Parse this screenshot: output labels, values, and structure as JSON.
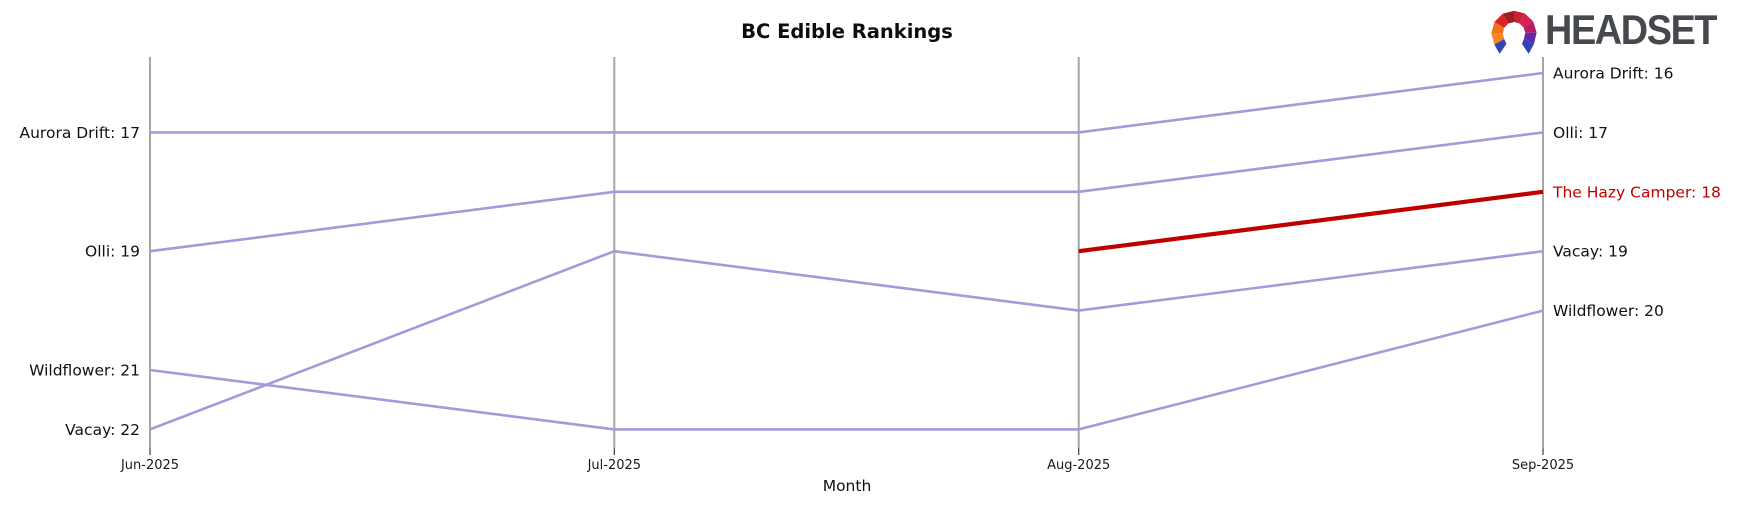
{
  "logo": {
    "text": "HEADSET"
  },
  "colors": {
    "line_purple": "#a49ad8",
    "accent_red": "#c00000",
    "axis_gray": "#a6a6a6",
    "text_dark": "#111111",
    "logo_text_gray": "#45484c"
  },
  "chart_data": {
    "type": "line",
    "subtype": "bump-ranking",
    "title": "BC Edible Rankings",
    "xlabel": "Month",
    "categories": [
      "Jun-2025",
      "Jul-2025",
      "Aug-2025",
      "Sep-2025"
    ],
    "ylim": [
      16,
      22
    ],
    "y_inverted": true,
    "grid": "vertical-axes-only",
    "legend_position": "none",
    "series": [
      {
        "name": "Aurora Drift",
        "values": [
          17,
          17,
          17,
          16
        ],
        "color": "#a49ad8",
        "label_color": "#111111",
        "emphasized": false
      },
      {
        "name": "Olli",
        "values": [
          19,
          18,
          18,
          17
        ],
        "color": "#a49ad8",
        "label_color": "#111111",
        "emphasized": false
      },
      {
        "name": "The Hazy Camper",
        "values": [
          null,
          null,
          19,
          18
        ],
        "color": "#c00000",
        "label_color": "#c00000",
        "emphasized": true
      },
      {
        "name": "Vacay",
        "values": [
          22,
          19,
          20,
          19
        ],
        "color": "#a49ad8",
        "label_color": "#111111",
        "emphasized": false
      },
      {
        "name": "Wildflower",
        "values": [
          21,
          22,
          22,
          20
        ],
        "color": "#a49ad8",
        "label_color": "#111111",
        "emphasized": false
      }
    ],
    "left_labels": [
      "Aurora Drift: 17",
      "Olli: 19",
      "Wildflower: 21",
      "Vacay: 22"
    ],
    "right_labels": [
      "Aurora Drift: 16",
      "Olli: 17",
      "The Hazy Camper: 18",
      "Vacay: 19",
      "Wildflower: 20"
    ]
  }
}
